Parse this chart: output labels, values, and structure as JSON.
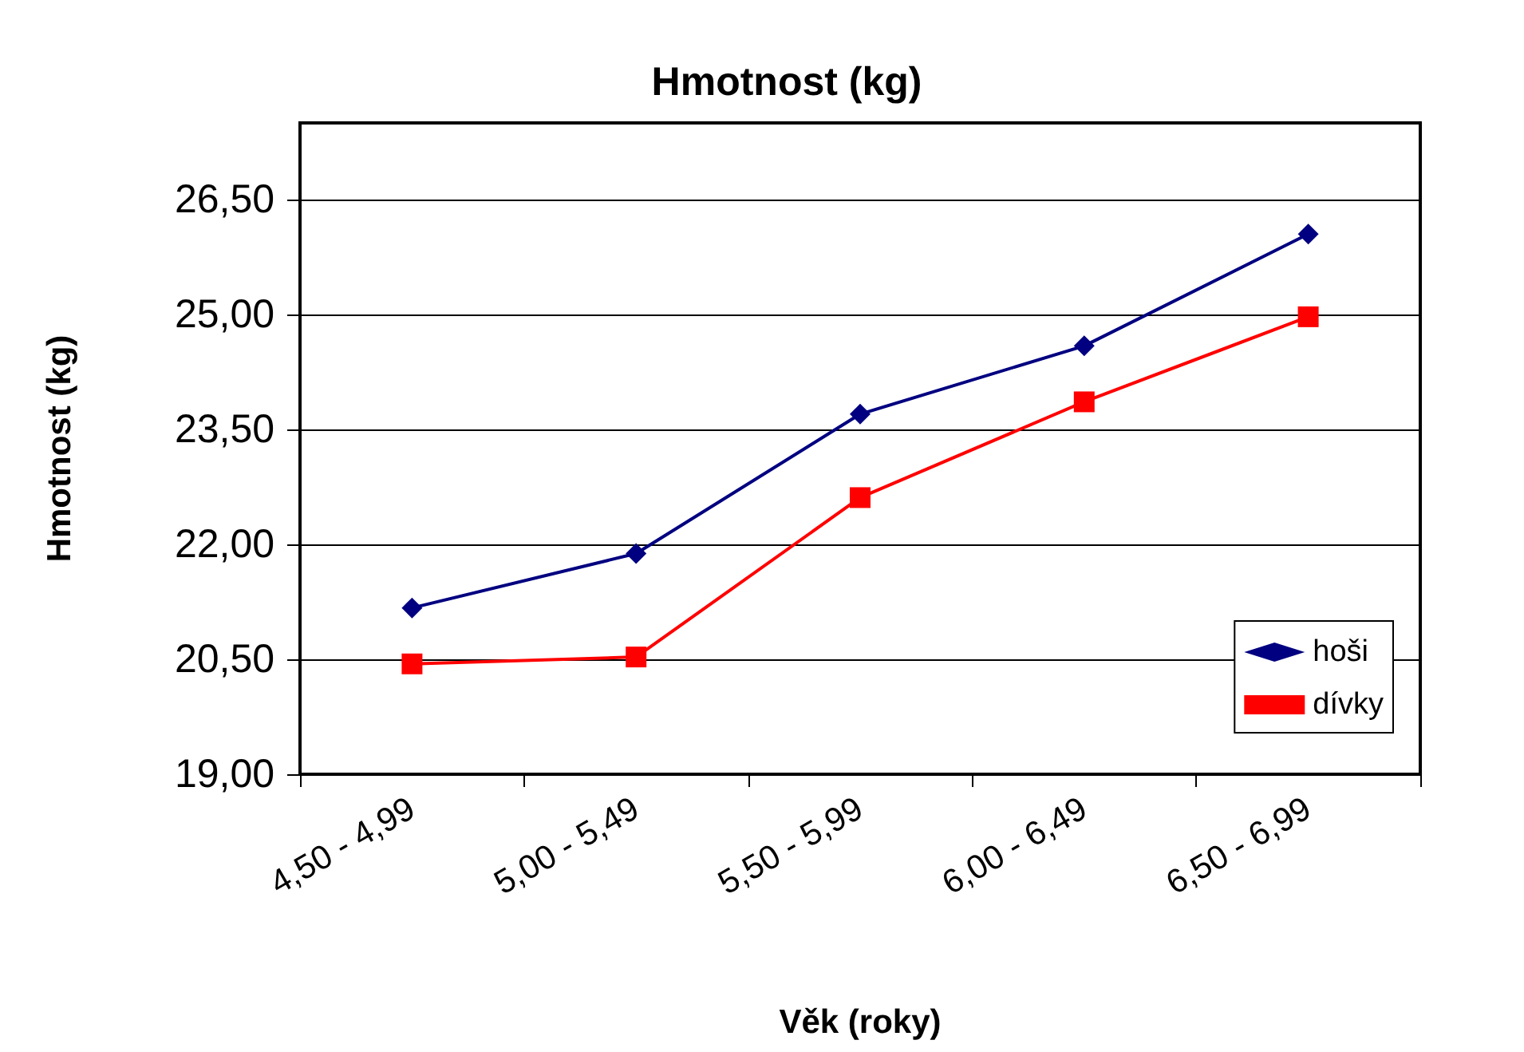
{
  "chart_data": {
    "type": "line",
    "title": "Hmotnost (kg)",
    "xlabel": "Věk (roky)",
    "ylabel": "Hmotnost (kg)",
    "categories": [
      "4,50 - 4,99",
      "5,00 - 5,49",
      "5,50 - 5,99",
      "6,00 - 6,49",
      "6,50 - 6,99"
    ],
    "series": [
      {
        "name": "hoši",
        "color": "#000080",
        "marker": "diamond",
        "values": [
          21.17,
          21.88,
          23.7,
          24.59,
          26.05
        ]
      },
      {
        "name": "dívky",
        "color": "#ff0000",
        "marker": "square",
        "values": [
          20.44,
          20.53,
          22.61,
          23.86,
          24.97
        ]
      }
    ],
    "ylim": [
      19,
      27.5
    ],
    "yticks": [
      {
        "value": 19,
        "label": "19,00"
      },
      {
        "value": 20.5,
        "label": "20,50"
      },
      {
        "value": 22,
        "label": "22,00"
      },
      {
        "value": 23.5,
        "label": "23,50"
      },
      {
        "value": 25,
        "label": "25,00"
      },
      {
        "value": 26.5,
        "label": "26,50"
      }
    ],
    "grid": "y",
    "legend": "bottom right",
    "line_style": "solid"
  }
}
